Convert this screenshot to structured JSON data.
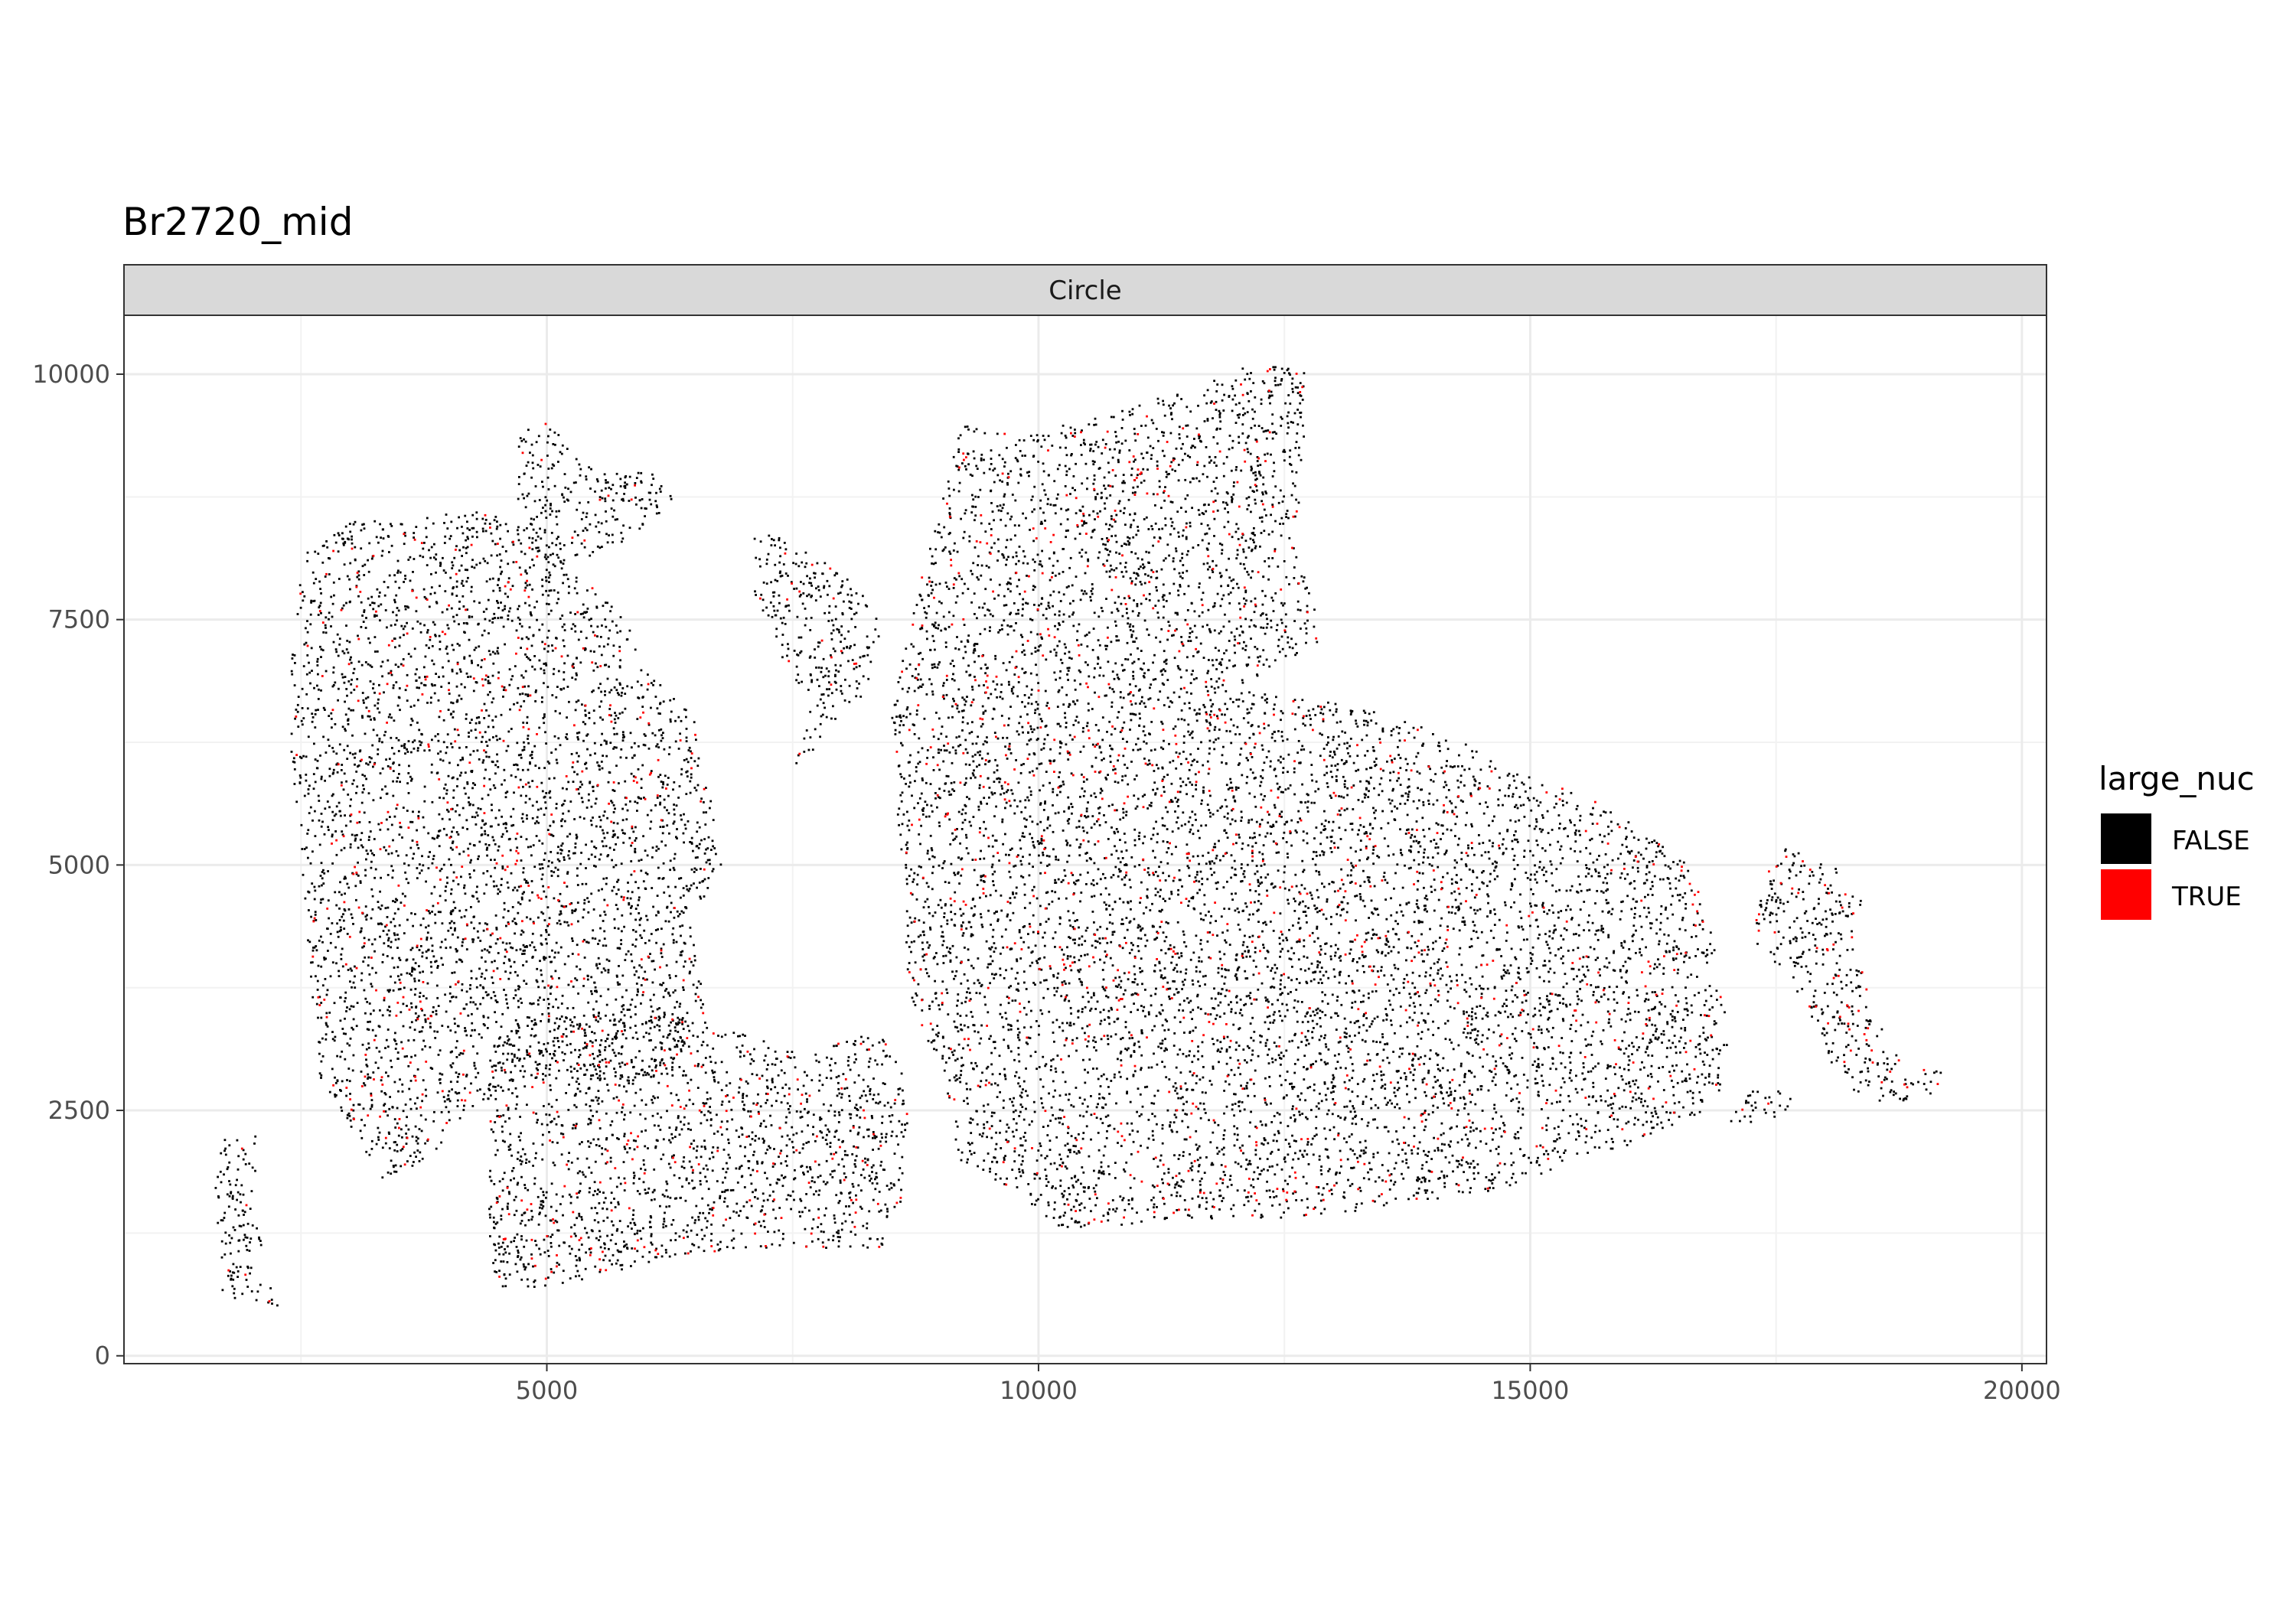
{
  "chart_data": {
    "type": "scatter",
    "title": "Br2720_mid",
    "facet": "Circle",
    "xlabel": "",
    "ylabel": "",
    "xlim": [
      700,
      20250
    ],
    "ylim": [
      -80,
      10600
    ],
    "x_ticks": [
      5000,
      10000,
      15000,
      20000
    ],
    "x_tick_labels": [
      "5000",
      "10000",
      "15000",
      "20000"
    ],
    "y_ticks": [
      0,
      2500,
      5000,
      7500,
      10000
    ],
    "y_tick_labels": [
      "0",
      "2500",
      "5000",
      "7500",
      "10000"
    ],
    "grid": true,
    "legend": {
      "title": "large_nuc",
      "placement": "right",
      "entries": [
        {
          "label": "FALSE",
          "color": "#000000"
        },
        {
          "label": "TRUE",
          "color": "#ff0000"
        }
      ]
    },
    "regions": [
      {
        "name": "left strip",
        "polygon": [
          [
            1700,
            2200
          ],
          [
            2100,
            2250
          ],
          [
            2000,
            1600
          ],
          [
            2150,
            900
          ],
          [
            2300,
            500
          ],
          [
            1700,
            600
          ],
          [
            1600,
            1500
          ]
        ],
        "true_fraction": 0.06
      },
      {
        "name": "left tissue",
        "polygon": [
          [
            2400,
            7000
          ],
          [
            2500,
            8200
          ],
          [
            3000,
            8500
          ],
          [
            4400,
            8600
          ],
          [
            5000,
            8300
          ],
          [
            5300,
            8000
          ],
          [
            5800,
            7500
          ],
          [
            6000,
            7000
          ],
          [
            6500,
            6500
          ],
          [
            6800,
            5000
          ],
          [
            6500,
            4500
          ],
          [
            6600,
            3500
          ],
          [
            6200,
            2800
          ],
          [
            4800,
            2800
          ],
          [
            4200,
            2500
          ],
          [
            3800,
            2000
          ],
          [
            3300,
            1800
          ],
          [
            3100,
            2200
          ],
          [
            2700,
            2800
          ],
          [
            2600,
            3800
          ],
          [
            2500,
            5200
          ],
          [
            2400,
            6000
          ]
        ],
        "true_fraction": 0.08
      },
      {
        "name": "left top lobe",
        "polygon": [
          [
            4700,
            9400
          ],
          [
            5000,
            9500
          ],
          [
            5500,
            9000
          ],
          [
            6100,
            9000
          ],
          [
            6300,
            8700
          ],
          [
            5800,
            8300
          ],
          [
            5100,
            8000
          ],
          [
            4700,
            8400
          ]
        ],
        "true_fraction": 0.05
      },
      {
        "name": "bottom tissue",
        "polygon": [
          [
            4400,
            2800
          ],
          [
            4700,
            3400
          ],
          [
            5600,
            3500
          ],
          [
            6600,
            3400
          ],
          [
            7600,
            3100
          ],
          [
            8400,
            3300
          ],
          [
            8700,
            2700
          ],
          [
            8600,
            1500
          ],
          [
            8400,
            1100
          ],
          [
            7000,
            1100
          ],
          [
            6000,
            900
          ],
          [
            5200,
            700
          ],
          [
            4500,
            700
          ],
          [
            4400,
            1200
          ],
          [
            4400,
            2200
          ]
        ],
        "true_fraction": 0.1
      },
      {
        "name": "upper middle piece",
        "polygon": [
          [
            7100,
            8400
          ],
          [
            7500,
            8300
          ],
          [
            8100,
            7900
          ],
          [
            8400,
            7500
          ],
          [
            8300,
            6800
          ],
          [
            7900,
            6400
          ],
          [
            7700,
            6100
          ],
          [
            7500,
            6000
          ],
          [
            7700,
            6700
          ],
          [
            7400,
            7000
          ],
          [
            7300,
            7500
          ],
          [
            7100,
            7600
          ]
        ],
        "true_fraction": 0.06
      },
      {
        "name": "large right tissue",
        "polygon": [
          [
            8700,
            7500
          ],
          [
            8900,
            8300
          ],
          [
            9200,
            9500
          ],
          [
            9600,
            9400
          ],
          [
            10400,
            9500
          ],
          [
            11300,
            9800
          ],
          [
            12200,
            10100
          ],
          [
            12700,
            10100
          ],
          [
            12700,
            9100
          ],
          [
            12600,
            8300
          ],
          [
            12900,
            7300
          ],
          [
            12000,
            6800
          ],
          [
            13300,
            6600
          ],
          [
            14200,
            6300
          ],
          [
            15000,
            5900
          ],
          [
            15800,
            5600
          ],
          [
            16600,
            5000
          ],
          [
            16800,
            4500
          ],
          [
            17000,
            3500
          ],
          [
            17000,
            2800
          ],
          [
            16800,
            2500
          ],
          [
            16200,
            2200
          ],
          [
            15500,
            2000
          ],
          [
            14700,
            1700
          ],
          [
            13500,
            1500
          ],
          [
            12500,
            1400
          ],
          [
            11500,
            1400
          ],
          [
            10700,
            1300
          ],
          [
            10200,
            1300
          ],
          [
            9700,
            1700
          ],
          [
            9200,
            2000
          ],
          [
            9000,
            3000
          ],
          [
            8700,
            3500
          ],
          [
            8600,
            5000
          ],
          [
            8500,
            6500
          ]
        ],
        "true_fraction": 0.09
      },
      {
        "name": "right fragment",
        "polygon": [
          [
            17300,
            4500
          ],
          [
            17500,
            5200
          ],
          [
            18100,
            5000
          ],
          [
            18400,
            4600
          ],
          [
            18300,
            4200
          ],
          [
            18600,
            3300
          ],
          [
            18800,
            3000
          ],
          [
            19300,
            2900
          ],
          [
            19200,
            2700
          ],
          [
            18800,
            2600
          ],
          [
            18400,
            2600
          ],
          [
            18100,
            2900
          ],
          [
            17800,
            3600
          ],
          [
            17500,
            4000
          ],
          [
            17300,
            4200
          ]
        ],
        "true_fraction": 0.14
      },
      {
        "name": "right small pieces",
        "polygon": [
          [
            17000,
            2500
          ],
          [
            17400,
            2800
          ],
          [
            17700,
            2600
          ],
          [
            17500,
            2400
          ],
          [
            17000,
            2350
          ]
        ],
        "true_fraction": 0.03
      }
    ],
    "point_count": 15500
  }
}
